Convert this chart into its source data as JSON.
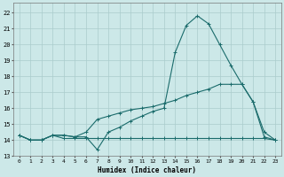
{
  "xlabel": "Humidex (Indice chaleur)",
  "bg_color": "#cce8e8",
  "grid_color": "#aacccc",
  "line_color": "#1a6b6b",
  "xlim": [
    -0.5,
    23.5
  ],
  "ylim": [
    13.0,
    22.6
  ],
  "yticks": [
    13,
    14,
    15,
    16,
    17,
    18,
    19,
    20,
    21,
    22
  ],
  "xticks": [
    0,
    1,
    2,
    3,
    4,
    5,
    6,
    7,
    8,
    9,
    10,
    11,
    12,
    13,
    14,
    15,
    16,
    17,
    18,
    19,
    20,
    21,
    22,
    23
  ],
  "series1_x": [
    0,
    1,
    2,
    3,
    4,
    5,
    6,
    7,
    8,
    9,
    10,
    11,
    12,
    13,
    14,
    15,
    16,
    17,
    18,
    19,
    20,
    21,
    22,
    23
  ],
  "series1_y": [
    14.3,
    14.0,
    14.0,
    14.3,
    14.1,
    14.1,
    14.1,
    14.1,
    14.1,
    14.1,
    14.1,
    14.1,
    14.1,
    14.1,
    14.1,
    14.1,
    14.1,
    14.1,
    14.1,
    14.1,
    14.1,
    14.1,
    14.1,
    14.0
  ],
  "series2_x": [
    0,
    1,
    2,
    3,
    4,
    5,
    6,
    7,
    8,
    9,
    10,
    11,
    12,
    13,
    14,
    15,
    16,
    17,
    18,
    19,
    20,
    21,
    22,
    23
  ],
  "series2_y": [
    14.3,
    14.0,
    14.0,
    14.3,
    14.3,
    14.2,
    14.5,
    15.3,
    15.5,
    15.7,
    15.9,
    16.0,
    16.1,
    16.3,
    16.5,
    16.8,
    17.0,
    17.2,
    17.5,
    17.5,
    17.5,
    16.4,
    14.2,
    14.0
  ],
  "series3_x": [
    0,
    1,
    2,
    3,
    4,
    5,
    6,
    7,
    8,
    9,
    10,
    11,
    12,
    13,
    14,
    15,
    16,
    17,
    18,
    19,
    20,
    21,
    22,
    23
  ],
  "series3_y": [
    14.3,
    14.0,
    14.0,
    14.3,
    14.3,
    14.2,
    14.2,
    13.4,
    14.5,
    14.8,
    15.2,
    15.5,
    15.8,
    16.0,
    19.5,
    21.2,
    21.8,
    21.3,
    20.0,
    18.7,
    17.5,
    16.4,
    14.5,
    14.0
  ]
}
